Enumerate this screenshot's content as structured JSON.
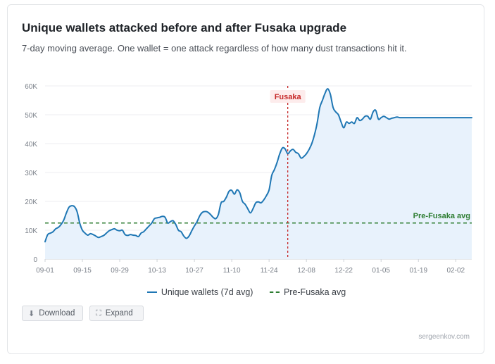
{
  "title": "Unique wallets attacked before and after Fusaka upgrade",
  "subtitle": "7-day moving average. One wallet = one attack regardless of how many dust transactions hit it.",
  "buttons": {
    "download": "Download",
    "expand": "Expand"
  },
  "footer": "sergeenkov.com",
  "colors": {
    "series": "#1f77b4",
    "area": "#e8f2fc",
    "reference": "#2e7d32",
    "marker": "#c62828"
  },
  "chart_data": {
    "type": "line",
    "x_ticks": [
      "09-01",
      "09-15",
      "09-29",
      "10-13",
      "10-27",
      "11-10",
      "11-24",
      "12-08",
      "12-22",
      "01-05",
      "01-19",
      "02-02"
    ],
    "y_ticks": [
      "0",
      "10K",
      "20K",
      "30K",
      "40K",
      "50K",
      "60K"
    ],
    "ylim": [
      0,
      60000
    ],
    "x_range_days": [
      0,
      160
    ],
    "grid": true,
    "legend_position": "bottom",
    "series": [
      {
        "name": "Unique wallets (7d avg)",
        "x": [
          0,
          1,
          2,
          3,
          4,
          5,
          6,
          7,
          8,
          9,
          10,
          11,
          12,
          13,
          14,
          15,
          16,
          17,
          18,
          19,
          20,
          21,
          22,
          23,
          24,
          25,
          26,
          27,
          28,
          29,
          30,
          31,
          32,
          33,
          34,
          35,
          36,
          37,
          38,
          39,
          40,
          41,
          42,
          43,
          44,
          45,
          46,
          47,
          48,
          49,
          50,
          51,
          52,
          53,
          54,
          55,
          56,
          57,
          58,
          59,
          60,
          61,
          62,
          63,
          64,
          65,
          66,
          67,
          68,
          69,
          70,
          71,
          72,
          73,
          74,
          75,
          76,
          77,
          78,
          79,
          80,
          81,
          82,
          83,
          84,
          85,
          86,
          87,
          88,
          89,
          90,
          91,
          92,
          93,
          94,
          95,
          96,
          97,
          98,
          99,
          100,
          101,
          102,
          103,
          104,
          105,
          106,
          107,
          108,
          109,
          110,
          111,
          112,
          113,
          114,
          115,
          116,
          117,
          118,
          119,
          120,
          121,
          122,
          123,
          124,
          125,
          126,
          127,
          128,
          129,
          130,
          131,
          132,
          133,
          134,
          135,
          136,
          137,
          138,
          139,
          140,
          141,
          142,
          143,
          144,
          145,
          146,
          147,
          148,
          149,
          150,
          151,
          152,
          153,
          154,
          155,
          156,
          157,
          158,
          159,
          160
        ],
        "values": [
          6000,
          8500,
          9000,
          9500,
          10500,
          11000,
          12000,
          13500,
          16000,
          18000,
          18500,
          18200,
          16500,
          12500,
          10000,
          9000,
          8300,
          8800,
          8500,
          8000,
          7500,
          7800,
          8200,
          9000,
          9800,
          10200,
          10500,
          10000,
          9800,
          10000,
          8500,
          8200,
          8500,
          8300,
          8200,
          7800,
          9000,
          9500,
          10500,
          11500,
          12500,
          14000,
          14300,
          14500,
          14800,
          14500,
          12500,
          13000,
          13300,
          12000,
          10000,
          9500,
          8000,
          7200,
          8000,
          9800,
          11500,
          13000,
          15000,
          16200,
          16500,
          16300,
          15500,
          14500,
          14000,
          15500,
          19500,
          20000,
          21500,
          23500,
          23800,
          22500,
          24000,
          23000,
          20000,
          19000,
          17500,
          16000,
          17500,
          19500,
          19800,
          19500,
          20500,
          22000,
          24000,
          29000,
          31000,
          33500,
          36500,
          38500,
          38200,
          36500,
          37500,
          38000,
          37000,
          36500,
          35000,
          35500,
          36500,
          38000,
          40000,
          43000,
          47000,
          52500,
          55000,
          57500,
          59000,
          57000,
          52500,
          51000,
          50000,
          47500,
          45500,
          47500,
          47000,
          47500,
          47000,
          49000,
          48000,
          48500,
          49500,
          49500,
          48500,
          51000,
          51500,
          48500,
          49000,
          49500,
          49000,
          48500,
          48800,
          49000,
          49200,
          49000,
          49000,
          49000,
          49000,
          49000,
          49000,
          49000,
          49000,
          49000,
          49000,
          49000,
          49000,
          49000,
          49000,
          49000,
          49000,
          49000,
          49000,
          49000,
          49000,
          49000,
          49000,
          49000,
          49000,
          49000,
          49000,
          49000,
          49000
        ]
      },
      {
        "name": "Pre-Fusaka avg",
        "constant": 12500
      }
    ],
    "annotations": [
      {
        "label": "Fusaka",
        "x_day": 91
      }
    ]
  }
}
